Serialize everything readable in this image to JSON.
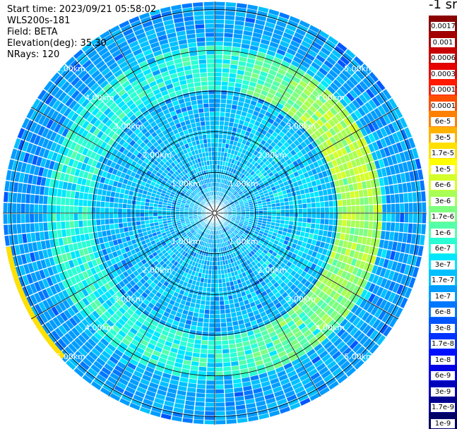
{
  "info": {
    "start_time": "Start time: 2023/09/21 05:58:02",
    "device": "WLS200s-181",
    "field": "Field: BETA",
    "elevation": "Elevation(deg): 35.30",
    "nrays": "NRays: 120"
  },
  "colorbar": {
    "unit": "-1 sr",
    "labels": [
      "0.0017",
      "0.001",
      "0.0006",
      "0.0003",
      "0.00017",
      "0.0001",
      "6e-5",
      "3e-5",
      "1.7e-5",
      "1e-5",
      "6e-6",
      "3e-6",
      "1.7e-6",
      "1e-6",
      "6e-7",
      "3e-7",
      "1.7e-7",
      "1e-7",
      "6e-8",
      "3e-8",
      "1.7e-8",
      "1e-8",
      "6e-9",
      "3e-9",
      "1.7e-9",
      "1e-9"
    ],
    "colors": [
      "#8b0000",
      "#a50000",
      "#c80000",
      "#e60000",
      "#ff1a00",
      "#ff4d00",
      "#ff8000",
      "#ffb300",
      "#ffe000",
      "#ffff00",
      "#d4ff2a",
      "#a8ff55",
      "#7dff80",
      "#55ffaa",
      "#2affd4",
      "#00e6ff",
      "#00c0ff",
      "#009cff",
      "#0077ff",
      "#0055ff",
      "#0033ff",
      "#0010ff",
      "#0000e6",
      "#0000bb",
      "#000090",
      "#000066"
    ]
  },
  "polar": {
    "range_labels": [
      "1.00km",
      "2.00km",
      "3.00km",
      "4.00km",
      "5.00km"
    ],
    "range_max_km": 5.2,
    "spoke_angles_deg": [
      0,
      30,
      60,
      90,
      120,
      150,
      180,
      210,
      240,
      270,
      300,
      330
    ]
  }
}
